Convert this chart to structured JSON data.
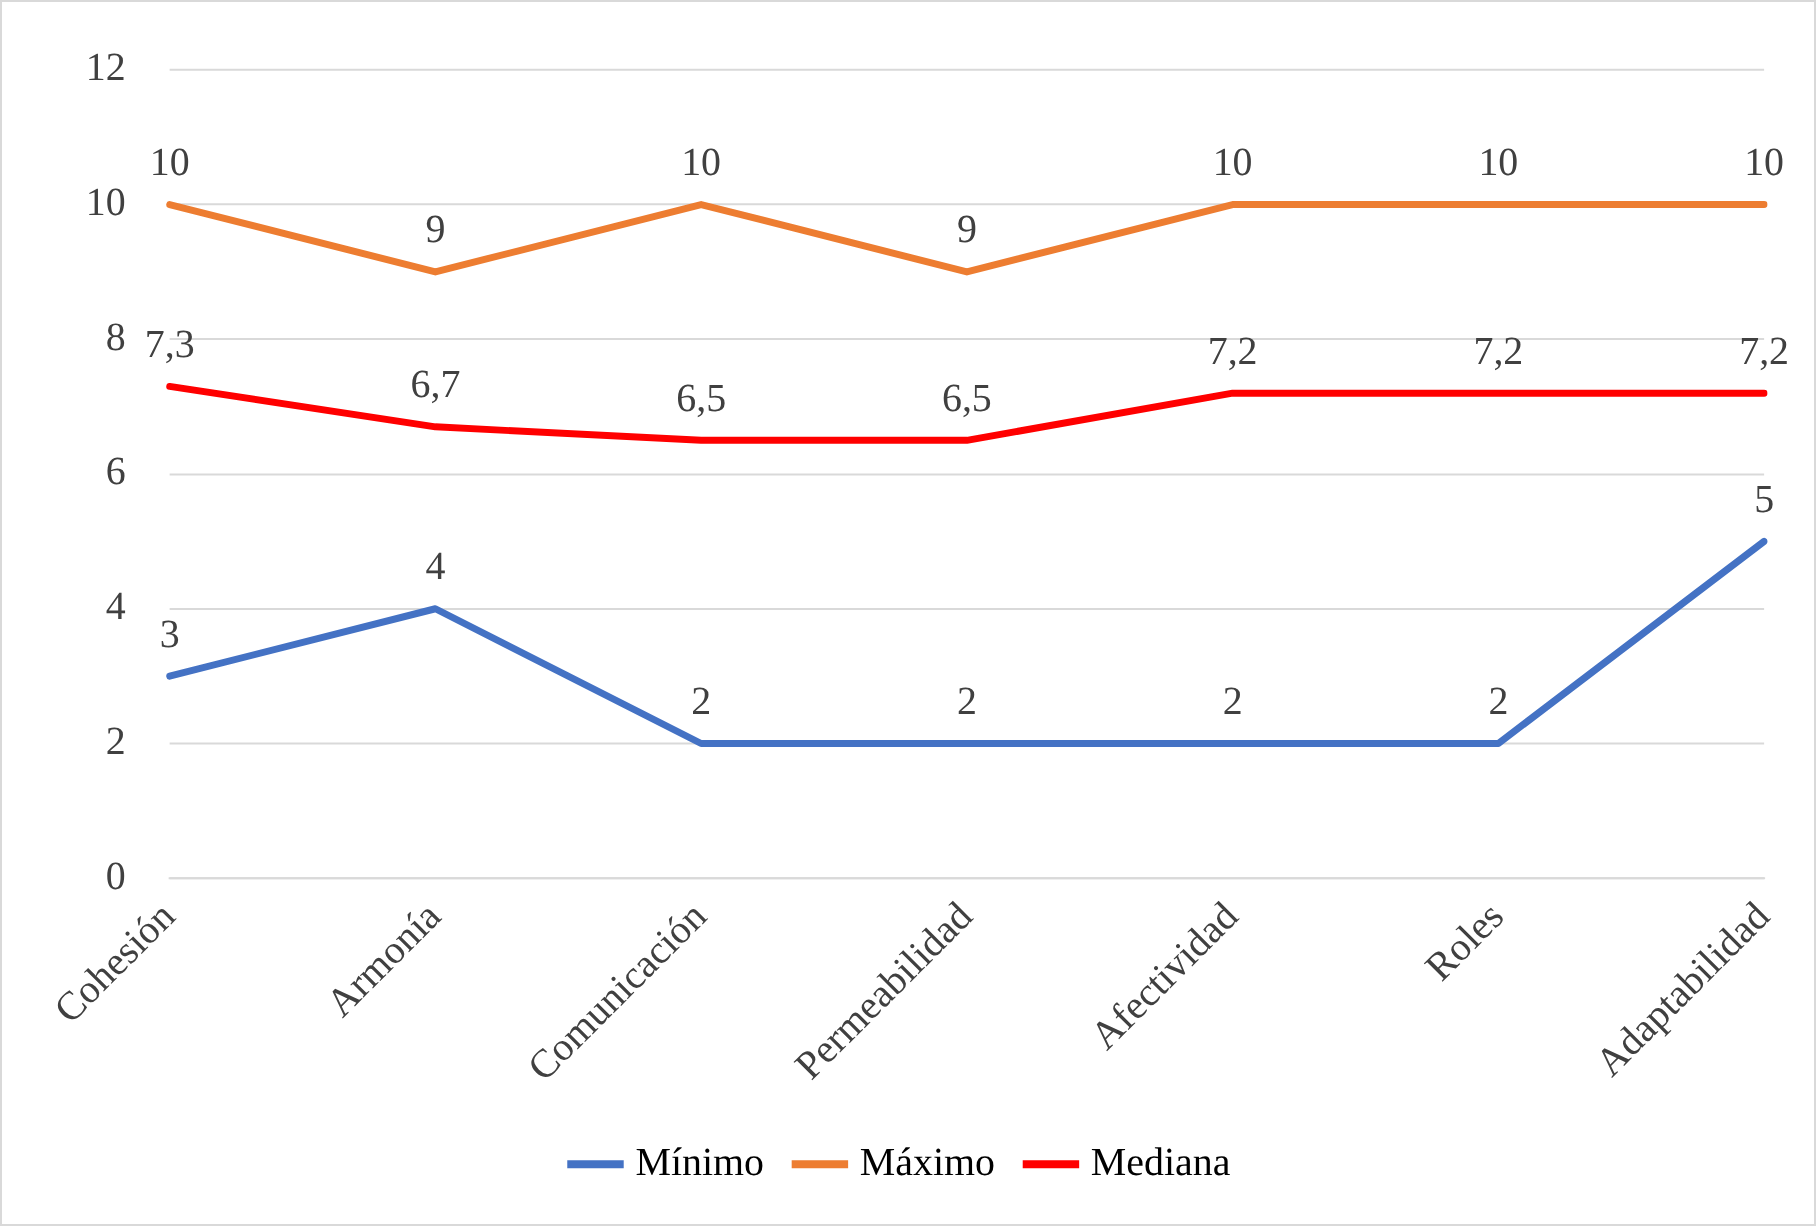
{
  "chart_data": {
    "type": "line",
    "categories": [
      "Cohesión",
      "Armonía",
      "Comunicación",
      "Permeabilidad",
      "Afectividad",
      "Roles",
      "Adaptabilidad"
    ],
    "series": [
      {
        "name": "Mínimo",
        "color": "#4472c4",
        "values": [
          3,
          4,
          2,
          2,
          2,
          2,
          5
        ],
        "value_labels": [
          "3",
          "4",
          "2",
          "2",
          "2",
          "2",
          "5"
        ]
      },
      {
        "name": "Máximo",
        "color": "#ed7d31",
        "values": [
          10,
          9,
          10,
          9,
          10,
          10,
          10
        ],
        "value_labels": [
          "10",
          "9",
          "10",
          "9",
          "10",
          "10",
          "10"
        ]
      },
      {
        "name": "Mediana",
        "color": "#ff0000",
        "values": [
          7.3,
          6.7,
          6.5,
          6.5,
          7.2,
          7.2,
          7.2
        ],
        "value_labels": [
          "7,3",
          "6,7",
          "6,5",
          "6,5",
          "7,2",
          "7,2",
          "7,2"
        ]
      }
    ],
    "ylim": [
      0,
      12
    ],
    "yticks": [
      0,
      2,
      4,
      6,
      8,
      10,
      12
    ],
    "grid": "y",
    "legend": "bottom",
    "marker": "none",
    "line_style": "solid"
  }
}
